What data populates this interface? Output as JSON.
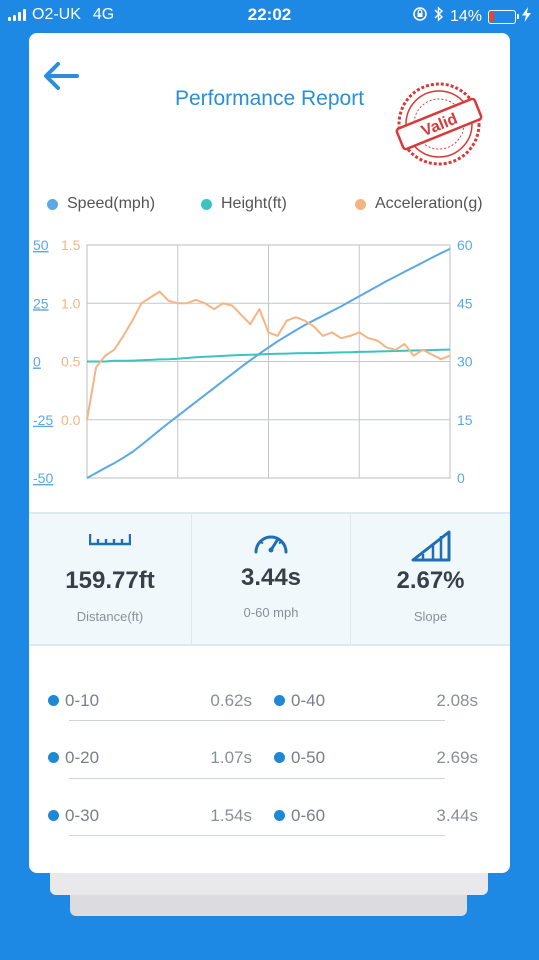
{
  "status": {
    "carrier": "O2-UK",
    "network": "4G",
    "time": "22:02",
    "battery": "14%"
  },
  "header": {
    "title": "Performance Report",
    "stamp_text": "Valid"
  },
  "legend": [
    {
      "label": "Speed(mph)",
      "color": "#5aa8e6"
    },
    {
      "label": "Height(ft)",
      "color": "#3cc3c0"
    },
    {
      "label": "Acceleration(g)",
      "color": "#f5b583"
    }
  ],
  "chart_data": {
    "type": "line",
    "x": [
      0,
      1,
      2,
      3,
      4,
      5,
      6,
      7,
      8,
      9,
      10,
      11,
      12,
      13,
      14,
      15,
      16,
      17,
      18,
      19,
      20,
      21,
      22,
      23,
      24,
      25,
      26,
      27,
      28,
      29,
      30,
      31,
      32,
      33,
      34,
      35,
      36,
      37,
      38,
      39,
      40
    ],
    "left_axis_height": {
      "ticks": [
        "50",
        "25",
        "0",
        "-25",
        "-50"
      ],
      "range": [
        -50,
        50
      ]
    },
    "left_axis_acceleration": {
      "ticks": [
        "1.5",
        "1.0",
        "0.5",
        "0.0"
      ],
      "range": [
        -0.5,
        1.5
      ]
    },
    "right_axis_speed": {
      "ticks": [
        "60",
        "45",
        "30",
        "15",
        "0"
      ],
      "range": [
        0,
        60
      ]
    },
    "grid": true,
    "series": [
      {
        "name": "Speed(mph)",
        "axis": "right",
        "values": [
          0,
          1.3,
          2.6,
          3.8,
          5.2,
          6.7,
          8.5,
          10.4,
          12.3,
          14.2,
          16,
          17.8,
          19.6,
          21.4,
          23.2,
          25,
          26.8,
          28.6,
          30.3,
          32,
          33.6,
          35.2,
          36.6,
          38,
          39.4,
          40.6,
          41.8,
          43,
          44.2,
          45.5,
          46.8,
          48.1,
          49.4,
          50.7,
          51.9,
          53.1,
          54.3,
          55.5,
          56.7,
          57.9,
          59
        ]
      },
      {
        "name": "Height(ft)",
        "axis": "left",
        "values": [
          0,
          0,
          0,
          0.3,
          0.3,
          0.4,
          0.5,
          0.7,
          0.9,
          1,
          1.2,
          1.5,
          1.8,
          2,
          2.2,
          2.4,
          2.6,
          2.8,
          2.9,
          3,
          3.2,
          3.3,
          3.4,
          3.5,
          3.6,
          3.6,
          3.7,
          3.8,
          3.9,
          4,
          4.1,
          4.2,
          4.3,
          4.4,
          4.5,
          4.6,
          4.7,
          4.8,
          4.9,
          5,
          5.1
        ]
      },
      {
        "name": "Acceleration(g)",
        "axis": "left",
        "values": [
          0,
          0.45,
          0.55,
          0.6,
          0.72,
          0.85,
          1.0,
          1.05,
          1.1,
          1.02,
          1.0,
          1.0,
          1.03,
          1.0,
          0.95,
          1.0,
          0.98,
          0.9,
          0.82,
          0.95,
          0.75,
          0.72,
          0.85,
          0.88,
          0.85,
          0.8,
          0.72,
          0.75,
          0.7,
          0.72,
          0.75,
          0.7,
          0.68,
          0.62,
          0.6,
          0.65,
          0.55,
          0.6,
          0.56,
          0.52,
          0.55
        ]
      }
    ]
  },
  "stats": [
    {
      "icon": "ruler-icon",
      "value": "159.77ft",
      "label": "Distance(ft)"
    },
    {
      "icon": "speedometer-icon",
      "value": "3.44s",
      "label": "0-60 mph"
    },
    {
      "icon": "slope-icon",
      "value": "2.67%",
      "label": "Slope"
    }
  ],
  "splits": [
    {
      "label": "0-10",
      "time": "0.62s"
    },
    {
      "label": "0-40",
      "time": "2.08s"
    },
    {
      "label": "0-20",
      "time": "1.07s"
    },
    {
      "label": "0-50",
      "time": "2.69s"
    },
    {
      "label": "0-30",
      "time": "1.54s"
    },
    {
      "label": "0-60",
      "time": "3.44s"
    }
  ]
}
